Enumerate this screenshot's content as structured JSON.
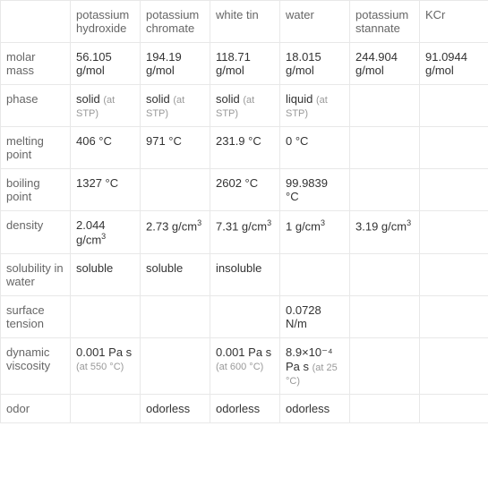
{
  "table": {
    "columns": [
      "",
      "potassium hydroxide",
      "potassium chromate",
      "white tin",
      "water",
      "potassium stannate",
      "KCr"
    ],
    "row_headers": [
      "molar mass",
      "phase",
      "melting point",
      "boiling point",
      "density",
      "solubility in water",
      "surface tension",
      "dynamic viscosity",
      "odor"
    ],
    "rows": {
      "molar_mass": [
        "56.105 g/mol",
        "194.19 g/mol",
        "118.71 g/mol",
        "18.015 g/mol",
        "244.904 g/mol",
        "91.0944 g/mol"
      ],
      "phase": {
        "values": [
          "solid",
          "solid",
          "solid",
          "liquid",
          "",
          ""
        ],
        "notes": [
          "(at STP)",
          "(at STP)",
          "(at STP)",
          "(at STP)",
          "",
          ""
        ]
      },
      "melting_point": [
        "406 °C",
        "971 °C",
        "231.9 °C",
        "0 °C",
        "",
        ""
      ],
      "boiling_point": [
        "1327 °C",
        "",
        "2602 °C",
        "99.9839 °C",
        "",
        ""
      ],
      "density": {
        "values": [
          "2.044 g/cm",
          "2.73 g/cm",
          "7.31 g/cm",
          "1 g/cm",
          "3.19 g/cm",
          ""
        ],
        "sup": [
          "3",
          "3",
          "3",
          "3",
          "3",
          ""
        ]
      },
      "solubility": [
        "soluble",
        "soluble",
        "insoluble",
        "",
        "",
        ""
      ],
      "surface_tension": [
        "",
        "",
        "",
        "0.0728 N/m",
        "",
        ""
      ],
      "dynamic_viscosity": {
        "values": [
          "0.001 Pa s",
          "",
          "0.001 Pa s",
          "8.9×10⁻⁴ Pa s",
          "",
          ""
        ],
        "notes": [
          "(at 550 °C)",
          "",
          "(at 600 °C)",
          "(at 25 °C)",
          "",
          ""
        ]
      },
      "odor": [
        "",
        "odorless",
        "odorless",
        "odorless",
        "",
        ""
      ]
    },
    "styling": {
      "border_color": "#e8e8e8",
      "header_text_color": "#666666",
      "cell_text_color": "#333333",
      "note_text_color": "#999999",
      "font_size": 13,
      "note_font_size": 11,
      "background_color": "#ffffff"
    }
  }
}
